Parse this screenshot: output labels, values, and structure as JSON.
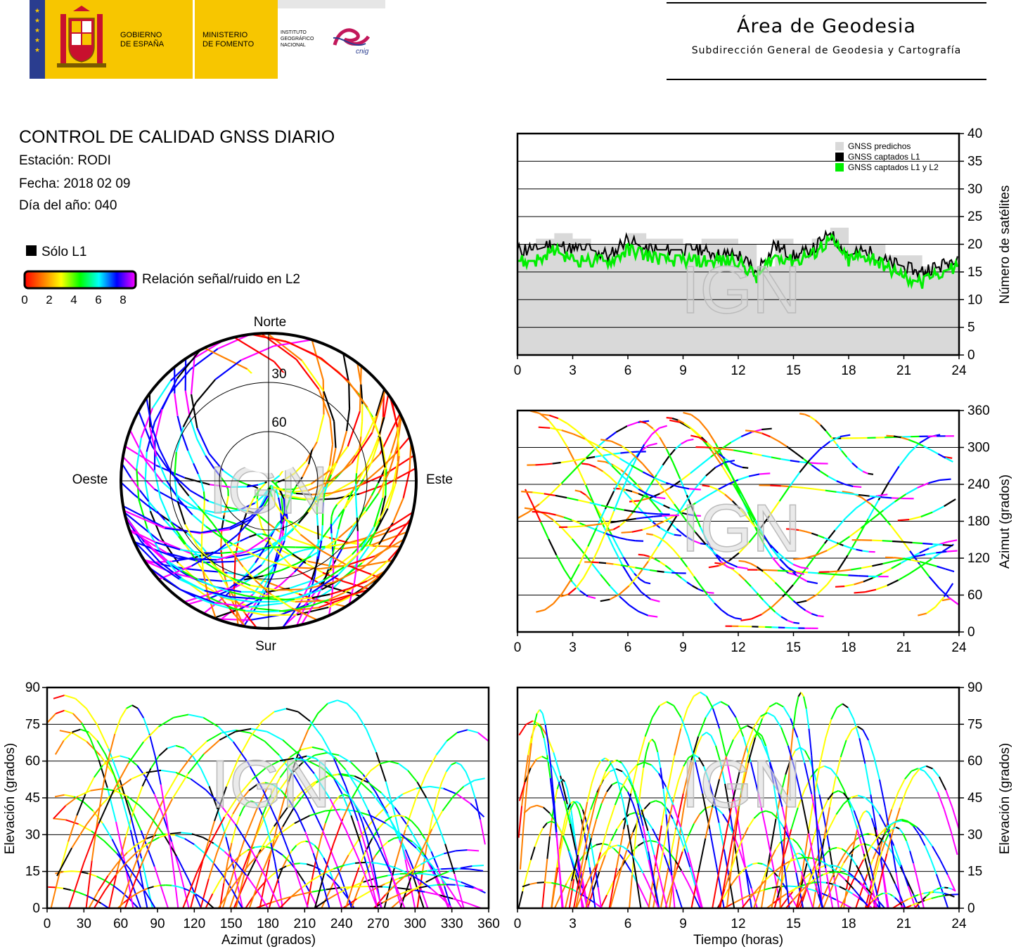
{
  "header": {
    "gov_line1": "GOBIERNO",
    "gov_line2": "DE ESPAÑA",
    "ministry_line1": "MINISTERIO",
    "ministry_line2": "DE FOMENTO",
    "ign_line1": "INSTITUTO",
    "ign_line2": "GEOGRÁFICO",
    "ign_line3": "NACIONAL",
    "cnig_label": "cnig",
    "area_title": "Área de Geodesia",
    "area_subtitle": "Subdirección General de Geodesia y Cartografía"
  },
  "report": {
    "title": "CONTROL DE CALIDAD GNSS DIARIO",
    "station": "Estación: RODI",
    "date": "Fecha: 2018 02 09",
    "doy": "Día del año: 040"
  },
  "legend": {
    "solo_l1": "Sólo L1",
    "snr_label": "Relación señal/ruido en L2",
    "scale_ticks": [
      "0",
      "2",
      "4",
      "6",
      "8"
    ],
    "snr_colors": [
      "#ff0000",
      "#ff8000",
      "#ffff00",
      "#00ff00",
      "#00ffff",
      "#0000ff",
      "#ff00ff"
    ]
  },
  "watermark": "IGN",
  "colors": {
    "predicted": "#d9d9d9",
    "l1": "#000000",
    "l1_l2": "#00ee00"
  },
  "chart_data": [
    {
      "type": "area",
      "id": "num-satellites",
      "ylabel": "Número de satélites",
      "x_ticks": [
        "0",
        "3",
        "6",
        "9",
        "12",
        "15",
        "18",
        "21",
        "24"
      ],
      "y_ticks": [
        "0",
        "5",
        "10",
        "15",
        "20",
        "25",
        "30",
        "35",
        "40"
      ],
      "xlim": [
        0,
        24
      ],
      "ylim": [
        0,
        40
      ],
      "legend_position": "top-right",
      "series": [
        {
          "name": "GNSS predichos",
          "x": [
            0,
            1,
            2,
            3,
            4,
            5,
            6,
            7,
            8,
            9,
            10,
            11,
            12,
            13,
            14,
            15,
            16,
            17,
            18,
            19,
            20,
            21,
            22,
            23,
            24
          ],
          "values": [
            20,
            21,
            22,
            21,
            20,
            20,
            22,
            21,
            21,
            20,
            21,
            21,
            20,
            16,
            21,
            20,
            21,
            23,
            20,
            20,
            18,
            18,
            16,
            17,
            20
          ]
        },
        {
          "name": "GNSS captados L1",
          "x": [
            0,
            1,
            2,
            3,
            4,
            5,
            6,
            7,
            8,
            9,
            10,
            11,
            12,
            13,
            14,
            15,
            16,
            17,
            18,
            19,
            20,
            21,
            22,
            23,
            24
          ],
          "values": [
            19,
            19,
            20,
            19,
            19,
            18,
            21,
            19,
            19,
            19,
            19,
            18,
            18,
            15,
            20,
            18,
            19,
            22,
            18,
            19,
            17,
            16,
            15,
            16,
            18
          ]
        },
        {
          "name": "GNSS captados L1 y L2",
          "x": [
            0,
            1,
            2,
            3,
            4,
            5,
            6,
            7,
            8,
            9,
            10,
            11,
            12,
            13,
            14,
            15,
            16,
            17,
            18,
            19,
            20,
            21,
            22,
            23,
            24
          ],
          "values": [
            17,
            17,
            19,
            17,
            17,
            17,
            19,
            18,
            17,
            17,
            17,
            17,
            17,
            14,
            18,
            17,
            18,
            21,
            17,
            18,
            16,
            14,
            13,
            15,
            16
          ]
        }
      ]
    },
    {
      "type": "scatter",
      "id": "sky-plot",
      "labels": {
        "north": "Norte",
        "south": "Sur",
        "east": "Este",
        "west": "Oeste"
      },
      "elevation_rings": [
        "30",
        "60"
      ]
    },
    {
      "type": "scatter",
      "id": "azimuth-vs-time",
      "ylabel": "Azimut (grados)",
      "x_ticks": [
        "0",
        "3",
        "6",
        "9",
        "12",
        "15",
        "18",
        "21",
        "24"
      ],
      "y_ticks": [
        "0",
        "60",
        "120",
        "180",
        "240",
        "300",
        "360"
      ],
      "xlim": [
        0,
        24
      ],
      "ylim": [
        0,
        360
      ]
    },
    {
      "type": "scatter",
      "id": "elevation-vs-azimuth",
      "xlabel": "Azimut (grados)",
      "ylabel": "Elevación (grados)",
      "x_ticks": [
        "0",
        "30",
        "60",
        "90",
        "120",
        "150",
        "180",
        "210",
        "240",
        "270",
        "300",
        "330",
        "360"
      ],
      "y_ticks": [
        "0",
        "15",
        "30",
        "45",
        "60",
        "75",
        "90"
      ],
      "xlim": [
        0,
        360
      ],
      "ylim": [
        0,
        90
      ]
    },
    {
      "type": "scatter",
      "id": "elevation-vs-time",
      "xlabel": "Tiempo (horas)",
      "ylabel": "Elevación (grados)",
      "x_ticks": [
        "0",
        "3",
        "6",
        "9",
        "12",
        "15",
        "18",
        "21",
        "24"
      ],
      "y_ticks": [
        "0",
        "15",
        "30",
        "45",
        "60",
        "75",
        "90"
      ],
      "xlim": [
        0,
        24
      ],
      "ylim": [
        0,
        90
      ]
    }
  ]
}
